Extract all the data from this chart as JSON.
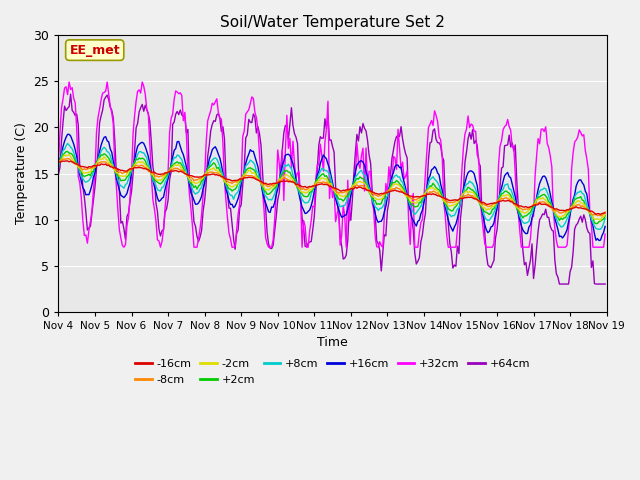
{
  "title": "Soil/Water Temperature Set 2",
  "xlabel": "Time",
  "ylabel": "Temperature (C)",
  "ylim": [
    0,
    30
  ],
  "background_color": "#f0f0f0",
  "plot_bg_color": "#e8e8e8",
  "annotation_text": "EE_met",
  "annotation_bg": "#ffffcc",
  "annotation_border": "#999900",
  "annotation_text_color": "#cc0000",
  "series_colors": {
    "-16cm": "#dd0000",
    "-8cm": "#ff8800",
    "-2cm": "#dddd00",
    "+2cm": "#00cc00",
    "+8cm": "#00cccc",
    "+16cm": "#0000dd",
    "+32cm": "#ff00ff",
    "+64cm": "#9900bb"
  },
  "xtick_labels": [
    "Nov 4",
    "Nov 5",
    "Nov 6",
    "Nov 7",
    "Nov 8",
    "Nov 9",
    "Nov 10",
    "Nov 11",
    "Nov 12",
    "Nov 13",
    "Nov 14",
    "Nov 15",
    "Nov 16",
    "Nov 17",
    "Nov 18",
    "Nov 19"
  ],
  "ytick_labels": [
    "0",
    "5",
    "10",
    "15",
    "20",
    "25",
    "30"
  ],
  "legend_entries": [
    "-16cm",
    "-8cm",
    "-2cm",
    "+2cm",
    "+8cm",
    "+16cm",
    "+32cm",
    "+64cm"
  ]
}
